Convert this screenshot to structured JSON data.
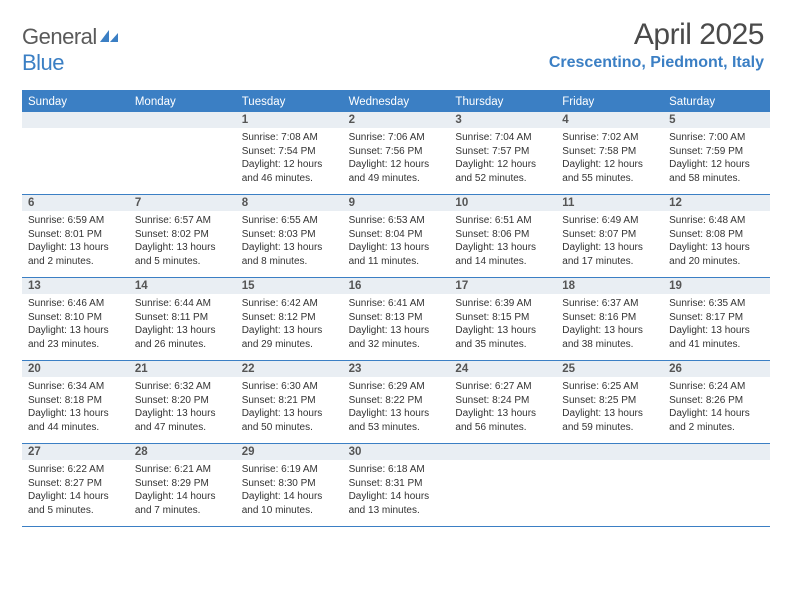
{
  "logo": {
    "general": "General",
    "blue": "Blue"
  },
  "title": "April 2025",
  "location": "Crescentino, Piedmont, Italy",
  "colors": {
    "accent": "#3b7fc4",
    "header_text": "#4a4a4a",
    "day_header_bg": "#e9eef3",
    "border": "#3b7fc4",
    "background": "#ffffff",
    "body_text": "#333333"
  },
  "weekdays": [
    "Sunday",
    "Monday",
    "Tuesday",
    "Wednesday",
    "Thursday",
    "Friday",
    "Saturday"
  ],
  "weeks": [
    [
      {
        "num": "",
        "sunrise": "",
        "sunset": "",
        "daylight": ""
      },
      {
        "num": "",
        "sunrise": "",
        "sunset": "",
        "daylight": ""
      },
      {
        "num": "1",
        "sunrise": "Sunrise: 7:08 AM",
        "sunset": "Sunset: 7:54 PM",
        "daylight": "Daylight: 12 hours and 46 minutes."
      },
      {
        "num": "2",
        "sunrise": "Sunrise: 7:06 AM",
        "sunset": "Sunset: 7:56 PM",
        "daylight": "Daylight: 12 hours and 49 minutes."
      },
      {
        "num": "3",
        "sunrise": "Sunrise: 7:04 AM",
        "sunset": "Sunset: 7:57 PM",
        "daylight": "Daylight: 12 hours and 52 minutes."
      },
      {
        "num": "4",
        "sunrise": "Sunrise: 7:02 AM",
        "sunset": "Sunset: 7:58 PM",
        "daylight": "Daylight: 12 hours and 55 minutes."
      },
      {
        "num": "5",
        "sunrise": "Sunrise: 7:00 AM",
        "sunset": "Sunset: 7:59 PM",
        "daylight": "Daylight: 12 hours and 58 minutes."
      }
    ],
    [
      {
        "num": "6",
        "sunrise": "Sunrise: 6:59 AM",
        "sunset": "Sunset: 8:01 PM",
        "daylight": "Daylight: 13 hours and 2 minutes."
      },
      {
        "num": "7",
        "sunrise": "Sunrise: 6:57 AM",
        "sunset": "Sunset: 8:02 PM",
        "daylight": "Daylight: 13 hours and 5 minutes."
      },
      {
        "num": "8",
        "sunrise": "Sunrise: 6:55 AM",
        "sunset": "Sunset: 8:03 PM",
        "daylight": "Daylight: 13 hours and 8 minutes."
      },
      {
        "num": "9",
        "sunrise": "Sunrise: 6:53 AM",
        "sunset": "Sunset: 8:04 PM",
        "daylight": "Daylight: 13 hours and 11 minutes."
      },
      {
        "num": "10",
        "sunrise": "Sunrise: 6:51 AM",
        "sunset": "Sunset: 8:06 PM",
        "daylight": "Daylight: 13 hours and 14 minutes."
      },
      {
        "num": "11",
        "sunrise": "Sunrise: 6:49 AM",
        "sunset": "Sunset: 8:07 PM",
        "daylight": "Daylight: 13 hours and 17 minutes."
      },
      {
        "num": "12",
        "sunrise": "Sunrise: 6:48 AM",
        "sunset": "Sunset: 8:08 PM",
        "daylight": "Daylight: 13 hours and 20 minutes."
      }
    ],
    [
      {
        "num": "13",
        "sunrise": "Sunrise: 6:46 AM",
        "sunset": "Sunset: 8:10 PM",
        "daylight": "Daylight: 13 hours and 23 minutes."
      },
      {
        "num": "14",
        "sunrise": "Sunrise: 6:44 AM",
        "sunset": "Sunset: 8:11 PM",
        "daylight": "Daylight: 13 hours and 26 minutes."
      },
      {
        "num": "15",
        "sunrise": "Sunrise: 6:42 AM",
        "sunset": "Sunset: 8:12 PM",
        "daylight": "Daylight: 13 hours and 29 minutes."
      },
      {
        "num": "16",
        "sunrise": "Sunrise: 6:41 AM",
        "sunset": "Sunset: 8:13 PM",
        "daylight": "Daylight: 13 hours and 32 minutes."
      },
      {
        "num": "17",
        "sunrise": "Sunrise: 6:39 AM",
        "sunset": "Sunset: 8:15 PM",
        "daylight": "Daylight: 13 hours and 35 minutes."
      },
      {
        "num": "18",
        "sunrise": "Sunrise: 6:37 AM",
        "sunset": "Sunset: 8:16 PM",
        "daylight": "Daylight: 13 hours and 38 minutes."
      },
      {
        "num": "19",
        "sunrise": "Sunrise: 6:35 AM",
        "sunset": "Sunset: 8:17 PM",
        "daylight": "Daylight: 13 hours and 41 minutes."
      }
    ],
    [
      {
        "num": "20",
        "sunrise": "Sunrise: 6:34 AM",
        "sunset": "Sunset: 8:18 PM",
        "daylight": "Daylight: 13 hours and 44 minutes."
      },
      {
        "num": "21",
        "sunrise": "Sunrise: 6:32 AM",
        "sunset": "Sunset: 8:20 PM",
        "daylight": "Daylight: 13 hours and 47 minutes."
      },
      {
        "num": "22",
        "sunrise": "Sunrise: 6:30 AM",
        "sunset": "Sunset: 8:21 PM",
        "daylight": "Daylight: 13 hours and 50 minutes."
      },
      {
        "num": "23",
        "sunrise": "Sunrise: 6:29 AM",
        "sunset": "Sunset: 8:22 PM",
        "daylight": "Daylight: 13 hours and 53 minutes."
      },
      {
        "num": "24",
        "sunrise": "Sunrise: 6:27 AM",
        "sunset": "Sunset: 8:24 PM",
        "daylight": "Daylight: 13 hours and 56 minutes."
      },
      {
        "num": "25",
        "sunrise": "Sunrise: 6:25 AM",
        "sunset": "Sunset: 8:25 PM",
        "daylight": "Daylight: 13 hours and 59 minutes."
      },
      {
        "num": "26",
        "sunrise": "Sunrise: 6:24 AM",
        "sunset": "Sunset: 8:26 PM",
        "daylight": "Daylight: 14 hours and 2 minutes."
      }
    ],
    [
      {
        "num": "27",
        "sunrise": "Sunrise: 6:22 AM",
        "sunset": "Sunset: 8:27 PM",
        "daylight": "Daylight: 14 hours and 5 minutes."
      },
      {
        "num": "28",
        "sunrise": "Sunrise: 6:21 AM",
        "sunset": "Sunset: 8:29 PM",
        "daylight": "Daylight: 14 hours and 7 minutes."
      },
      {
        "num": "29",
        "sunrise": "Sunrise: 6:19 AM",
        "sunset": "Sunset: 8:30 PM",
        "daylight": "Daylight: 14 hours and 10 minutes."
      },
      {
        "num": "30",
        "sunrise": "Sunrise: 6:18 AM",
        "sunset": "Sunset: 8:31 PM",
        "daylight": "Daylight: 14 hours and 13 minutes."
      },
      {
        "num": "",
        "sunrise": "",
        "sunset": "",
        "daylight": ""
      },
      {
        "num": "",
        "sunrise": "",
        "sunset": "",
        "daylight": ""
      },
      {
        "num": "",
        "sunrise": "",
        "sunset": "",
        "daylight": ""
      }
    ]
  ]
}
